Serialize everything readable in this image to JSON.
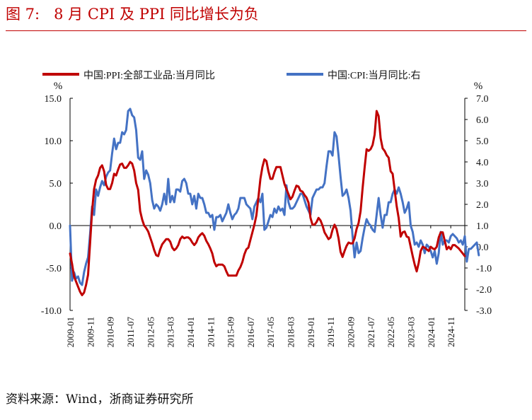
{
  "figure_title": "图 7:   8 月 CPI 及 PPI 同比增长为负",
  "source": "资料来源：Wind，浙商证券研究所",
  "colors": {
    "ppi": "#c00000",
    "cpi": "#4472c4",
    "axis": "#000000",
    "title": "#c00000"
  },
  "chart_data": {
    "type": "line",
    "title": "8 月 CPI 及 PPI 同比增长为负",
    "left_unit": "%",
    "right_unit": "%",
    "legend_position": "top",
    "grid": false,
    "left_axis": {
      "min": -10,
      "max": 15,
      "ticks": [
        "15.0",
        "10.0",
        "5.0",
        "0.0",
        "-5.0",
        "-10.0"
      ]
    },
    "right_axis": {
      "min": -3,
      "max": 7,
      "ticks": [
        "7.0",
        "6.0",
        "5.0",
        "4.0",
        "3.0",
        "2.0",
        "1.0",
        "0.0",
        "-1.0",
        "-2.0",
        "-3.0"
      ]
    },
    "x_ticks": [
      "2009-01",
      "2009-11",
      "2010-09",
      "2011-07",
      "2012-05",
      "2013-03",
      "2014-01",
      "2014-11",
      "2015-09",
      "2016-07",
      "2017-05",
      "2018-03",
      "2019-01",
      "2019-11",
      "2020-09",
      "2021-07",
      "2022-05",
      "2023-03",
      "2024-01",
      "2024-11"
    ],
    "start_month": "2009-01",
    "series": [
      {
        "name": "中国:PPI:全部工业品:当月同比",
        "axis": "left",
        "values": [
          -3.3,
          -4.5,
          -6.0,
          -6.6,
          -7.2,
          -7.8,
          -8.2,
          -7.9,
          -7.0,
          -5.8,
          -2.1,
          1.7,
          4.3,
          5.4,
          5.9,
          6.8,
          7.1,
          6.4,
          4.8,
          4.3,
          4.3,
          5.0,
          6.1,
          5.9,
          6.6,
          7.2,
          7.3,
          6.8,
          6.8,
          7.1,
          7.5,
          7.3,
          6.5,
          5.0,
          4.2,
          1.7,
          0.7,
          0.0,
          -0.3,
          -0.7,
          -1.4,
          -2.1,
          -2.9,
          -3.5,
          -3.6,
          -2.8,
          -2.2,
          -1.9,
          -1.6,
          -1.6,
          -1.9,
          -2.6,
          -2.9,
          -2.7,
          -2.3,
          -1.6,
          -1.3,
          -1.5,
          -1.4,
          -1.4,
          -1.6,
          -2.0,
          -2.3,
          -2.0,
          -1.4,
          -1.1,
          -0.9,
          -1.2,
          -1.8,
          -2.2,
          -2.7,
          -3.3,
          -4.3,
          -4.8,
          -4.6,
          -4.6,
          -4.6,
          -4.8,
          -5.4,
          -5.9,
          -5.9,
          -5.9,
          -5.9,
          -5.9,
          -5.3,
          -4.9,
          -4.3,
          -3.4,
          -2.8,
          -2.6,
          -1.7,
          -0.8,
          0.1,
          1.2,
          3.3,
          5.5,
          6.9,
          7.8,
          7.6,
          6.4,
          5.5,
          5.5,
          6.3,
          6.9,
          6.9,
          6.9,
          5.9,
          4.9,
          4.3,
          3.7,
          3.1,
          3.4,
          4.1,
          4.7,
          4.6,
          4.1,
          4.0,
          3.6,
          3.3,
          2.7,
          0.9,
          0.1,
          0.1,
          0.4,
          0.9,
          0.6,
          0.0,
          -0.8,
          -1.2,
          -1.6,
          -1.4,
          -0.5,
          0.1,
          -0.4,
          -1.5,
          -3.1,
          -3.7,
          -3.0,
          -2.4,
          -2.0,
          -2.1,
          -2.1,
          -1.5,
          -0.4,
          0.3,
          1.7,
          4.4,
          6.8,
          9.0,
          8.8,
          9.0,
          9.5,
          10.7,
          13.5,
          12.9,
          10.3,
          9.1,
          8.8,
          8.3,
          8.0,
          6.4,
          6.1,
          4.2,
          2.3,
          0.9,
          -1.3,
          -0.8,
          -0.7,
          -1.3,
          -1.4,
          -2.5,
          -3.6,
          -4.6,
          -5.4,
          -4.4,
          -3.0,
          -2.5,
          -2.6,
          -2.8,
          -3.0,
          -2.5,
          -2.7,
          -2.8,
          -2.5,
          -1.4,
          -0.8,
          -0.8,
          -1.8,
          -2.8,
          -2.5,
          -2.8,
          -2.3,
          -2.3,
          -2.5,
          -2.7,
          -3.0,
          -3.3,
          -3.6
        ]
      },
      {
        "name": "中国:CPI:当月同比:右",
        "axis": "right",
        "values": [
          1.0,
          -1.6,
          -1.2,
          -1.5,
          -1.4,
          -1.7,
          -1.8,
          -1.2,
          -0.8,
          -0.5,
          0.6,
          1.9,
          1.5,
          2.7,
          2.4,
          2.8,
          3.1,
          2.9,
          3.3,
          3.5,
          3.6,
          4.4,
          5.1,
          4.6,
          4.9,
          4.9,
          5.4,
          5.3,
          5.5,
          6.4,
          6.5,
          6.2,
          6.1,
          5.5,
          4.2,
          4.1,
          4.5,
          3.2,
          3.6,
          3.4,
          3.0,
          2.2,
          1.8,
          2.0,
          1.9,
          1.7,
          2.0,
          2.5,
          2.0,
          3.2,
          2.1,
          2.4,
          2.1,
          2.7,
          2.7,
          2.6,
          3.1,
          3.2,
          3.0,
          2.5,
          2.5,
          2.0,
          2.4,
          1.8,
          2.5,
          2.3,
          2.3,
          2.0,
          1.6,
          1.6,
          1.4,
          1.5,
          0.8,
          1.4,
          1.4,
          1.5,
          1.2,
          1.4,
          1.6,
          2.0,
          1.6,
          1.3,
          1.5,
          1.6,
          1.8,
          2.3,
          2.3,
          2.3,
          2.0,
          1.9,
          1.8,
          1.3,
          1.9,
          2.1,
          2.3,
          2.1,
          2.5,
          0.8,
          0.9,
          1.2,
          1.5,
          1.4,
          1.8,
          1.6,
          1.9,
          1.7,
          1.8,
          1.5,
          2.9,
          2.1,
          1.8,
          1.8,
          1.9,
          2.1,
          2.3,
          2.5,
          2.5,
          2.2,
          1.9,
          1.7,
          1.5,
          2.3,
          2.5,
          2.7,
          2.7,
          2.8,
          2.8,
          3.0,
          3.8,
          4.5,
          4.5,
          4.3,
          5.4,
          5.2,
          4.3,
          3.3,
          2.4,
          2.5,
          2.7,
          2.3,
          1.7,
          0.5,
          -0.5,
          0.2,
          -0.3,
          -0.2,
          0.4,
          0.9,
          1.3,
          1.1,
          1.0,
          0.8,
          0.7,
          1.5,
          2.3,
          1.5,
          0.9,
          1.5,
          1.5,
          2.1,
          2.1,
          2.5,
          2.7,
          2.5,
          2.8,
          2.5,
          2.1,
          1.6,
          1.8,
          2.1,
          1.0,
          0.7,
          0.1,
          0.2,
          0.0,
          0.3,
          0.1,
          -0.3,
          0.1,
          0.0,
          -0.2,
          -0.5,
          -0.2,
          -0.8,
          -0.3,
          0.7,
          0.1,
          0.3,
          0.3,
          0.2,
          0.5,
          0.6,
          0.5,
          0.4,
          0.2,
          0.3,
          0.1,
          0.5,
          -0.7,
          -0.1,
          -0.1,
          0.0,
          0.1,
          0.2,
          -0.4
        ]
      }
    ]
  }
}
